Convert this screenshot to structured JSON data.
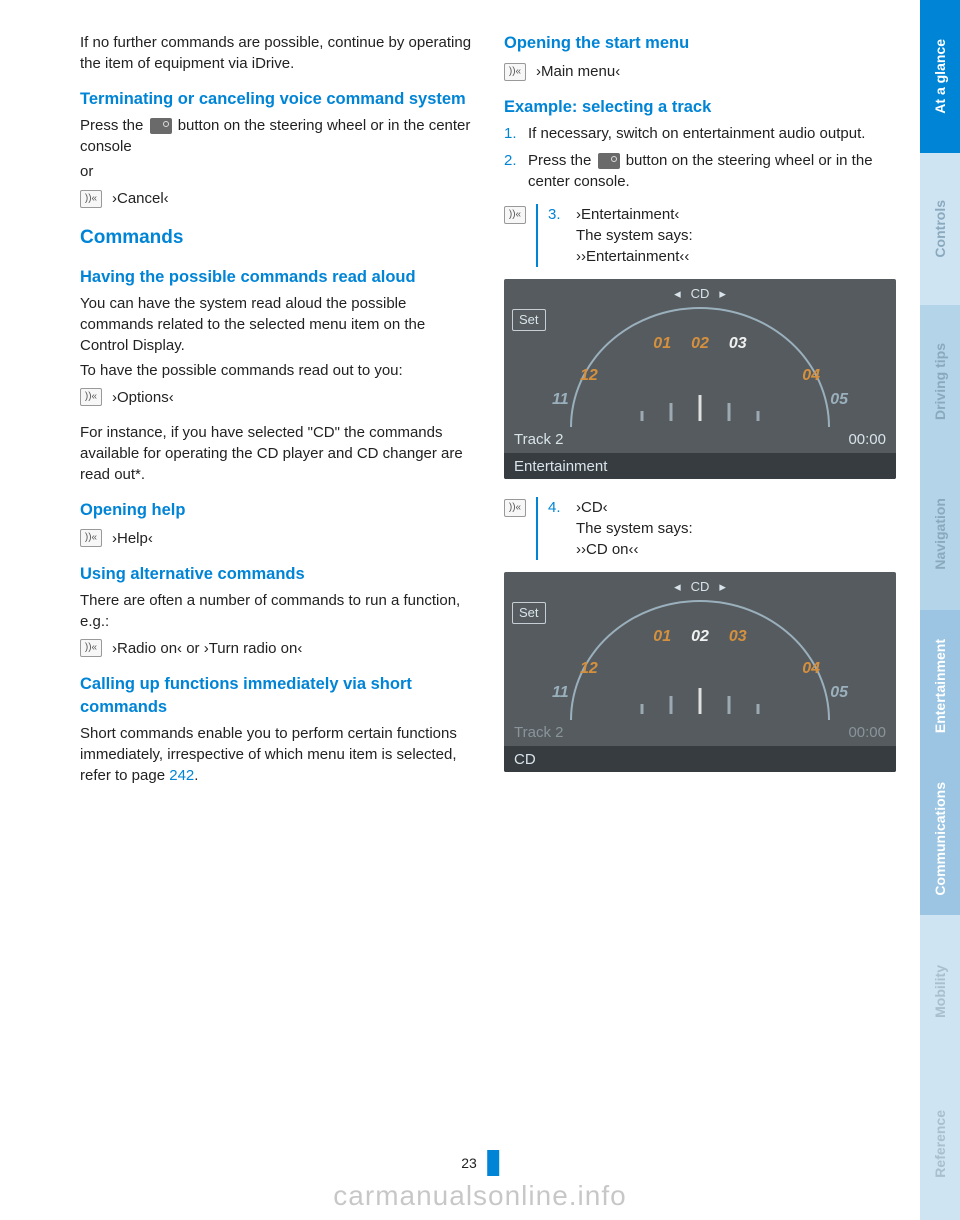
{
  "left": {
    "intro": "If no further commands are possible, continue by operating the item of equipment via iDrive.",
    "h3_terminate": "Terminating or canceling voice command system",
    "terminate_p1a": "Press the ",
    "terminate_p1b": " button on the steering wheel or in the center console",
    "terminate_or": "or",
    "cancel_cmd": "›Cancel‹",
    "h2_commands": "Commands",
    "h3_readaloud": "Having the possible commands read aloud",
    "readaloud_p1": "You can have the system read aloud the possible commands related to the selected menu item on the Control Display.",
    "readaloud_p2": "To have the possible commands read out to you:",
    "options_cmd": "›Options‹",
    "readaloud_p3": "For instance, if you have selected \"CD\" the commands available for operating the CD player and CD changer are read out*.",
    "h3_help": "Opening help",
    "help_cmd": "›Help‹",
    "h3_alt": "Using alternative commands",
    "alt_p": "There are often a number of commands to run a function, e.g.:",
    "alt_cmd": "›Radio on‹  or  ›Turn radio on‹",
    "h3_short": "Calling up functions immediately via short commands",
    "short_p_a": "Short commands enable you to perform certain functions immediately, irrespective of which menu item is selected, refer to page ",
    "short_link": "242",
    "short_p_b": "."
  },
  "right": {
    "h3_start": "Opening the start menu",
    "start_cmd": "›Main menu‹",
    "h3_example": "Example: selecting a track",
    "step1_num": "1.",
    "step1": "If necessary, switch on entertainment audio output.",
    "step2_num": "2.",
    "step2a": "Press the ",
    "step2b": " button on the steering wheel or in the center console.",
    "step3_num": "3.",
    "step3_cmd": "›Entertainment‹",
    "step3_says": "The system says:",
    "step3_resp": "››Entertainment‹‹",
    "step4_num": "4.",
    "step4_cmd": "›CD‹",
    "step4_says": "The system says:",
    "step4_resp": "››CD on‹‹"
  },
  "figure": {
    "cd": "CD",
    "set": "Set",
    "nums": [
      "01",
      "02",
      "03"
    ],
    "left_end": "⇌",
    "right_end": "⇌",
    "side_l": "11",
    "side_r": "04",
    "side_l2": "12",
    "side_r2": "05",
    "track": "Track  2",
    "time": "00:00",
    "bottom1": "Entertainment",
    "bottom2": "CD"
  },
  "tabs": [
    {
      "label": "At a glance",
      "bg": "#0084d6",
      "fg": "#ffffff"
    },
    {
      "label": "Controls",
      "bg": "#cfe4f3",
      "fg": "#8aa9bd"
    },
    {
      "label": "Driving tips",
      "bg": "#b4d4ea",
      "fg": "#8aa9bd"
    },
    {
      "label": "Navigation",
      "bg": "#b4d4ea",
      "fg": "#8aa9bd"
    },
    {
      "label": "Entertainment",
      "bg": "#9bc5e2",
      "fg": "#ffffff"
    },
    {
      "label": "Communications",
      "bg": "#9bc5e2",
      "fg": "#ffffff"
    },
    {
      "label": "Mobility",
      "bg": "#cfe4f3",
      "fg": "#a9bfcd"
    },
    {
      "label": "Reference",
      "bg": "#cfe4f3",
      "fg": "#a9bfcd"
    }
  ],
  "pagenum": "23",
  "watermark": "carmanualsonline.info"
}
